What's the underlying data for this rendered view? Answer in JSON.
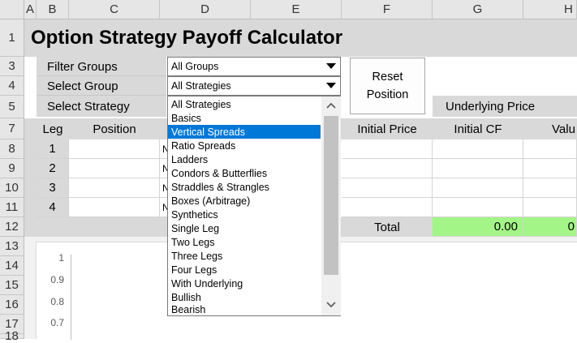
{
  "columns": [
    "A",
    "B",
    "C",
    "D",
    "E",
    "F",
    "G",
    "H"
  ],
  "rows": [
    "1",
    "3",
    "4",
    "5",
    "7",
    "8",
    "9",
    "10",
    "11",
    "12",
    "13",
    "14",
    "15",
    "16",
    "17",
    "18"
  ],
  "title": "Option Strategy Payoff Calculator",
  "labels": {
    "filter_groups": "Filter Groups",
    "select_group": "Select Group",
    "select_strategy": "Select Strategy",
    "underlying_price": "Underlying Price"
  },
  "combos": {
    "filter_groups_value": "All Groups",
    "select_group_value": "All Strategies"
  },
  "reset_button": {
    "line1": "Reset",
    "line2": "Position"
  },
  "table": {
    "headers": {
      "leg": "Leg",
      "position": "Position",
      "initial_price": "Initial Price",
      "initial_cf": "Initial CF",
      "value": "Valu"
    },
    "legs": [
      "1",
      "2",
      "3",
      "4"
    ],
    "partial": "N",
    "total_label": "Total",
    "total_cf": "0.00",
    "total_value": "0"
  },
  "dropdown": {
    "selected_index": 2,
    "items": [
      "All Strategies",
      "Basics",
      "Vertical Spreads",
      "Ratio Spreads",
      "Ladders",
      "Condors & Butterflies",
      "Straddles & Strangles",
      "Boxes (Arbitrage)",
      "Synthetics",
      "Single Leg",
      "Two Legs",
      "Three Legs",
      "Four Legs",
      "With Underlying",
      "Bullish",
      "Bearish"
    ]
  },
  "chart": {
    "y_ticks": [
      "1",
      "0.9",
      "0.8",
      "0.7"
    ]
  },
  "icons": {
    "combo_arrow": "triangle-down-icon",
    "scroll_up": "chevron-up-icon",
    "scroll_down": "chevron-down-icon"
  }
}
